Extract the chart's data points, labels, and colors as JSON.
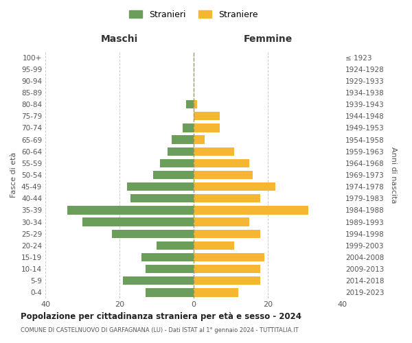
{
  "age_groups": [
    "100+",
    "95-99",
    "90-94",
    "85-89",
    "80-84",
    "75-79",
    "70-74",
    "65-69",
    "60-64",
    "55-59",
    "50-54",
    "45-49",
    "40-44",
    "35-39",
    "30-34",
    "25-29",
    "20-24",
    "15-19",
    "10-14",
    "5-9",
    "0-4"
  ],
  "birth_years": [
    "≤ 1923",
    "1924-1928",
    "1929-1933",
    "1934-1938",
    "1939-1943",
    "1944-1948",
    "1949-1953",
    "1954-1958",
    "1959-1963",
    "1964-1968",
    "1969-1973",
    "1974-1978",
    "1979-1983",
    "1984-1988",
    "1989-1993",
    "1994-1998",
    "1999-2003",
    "2004-2008",
    "2009-2013",
    "2014-2018",
    "2019-2023"
  ],
  "males": [
    0,
    0,
    0,
    0,
    2,
    0,
    3,
    6,
    7,
    9,
    11,
    18,
    17,
    34,
    30,
    22,
    10,
    14,
    13,
    19,
    13
  ],
  "females": [
    0,
    0,
    0,
    0,
    1,
    7,
    7,
    3,
    11,
    15,
    16,
    22,
    18,
    31,
    15,
    18,
    11,
    19,
    18,
    18,
    12
  ],
  "male_color": "#6a9e5a",
  "female_color": "#f5b731",
  "male_label": "Stranieri",
  "female_label": "Straniere",
  "title": "Popolazione per cittadinanza straniera per età e sesso - 2024",
  "subtitle": "COMUNE DI CASTELNUOVO DI GARFAGNANA (LU) - Dati ISTAT al 1° gennaio 2024 - TUTTITALIA.IT",
  "xlabel_left": "Maschi",
  "xlabel_right": "Femmine",
  "ylabel_left": "Fasce di età",
  "ylabel_right": "Anni di nascita",
  "xlim": 40,
  "background_color": "#ffffff",
  "grid_color": "#cccccc"
}
